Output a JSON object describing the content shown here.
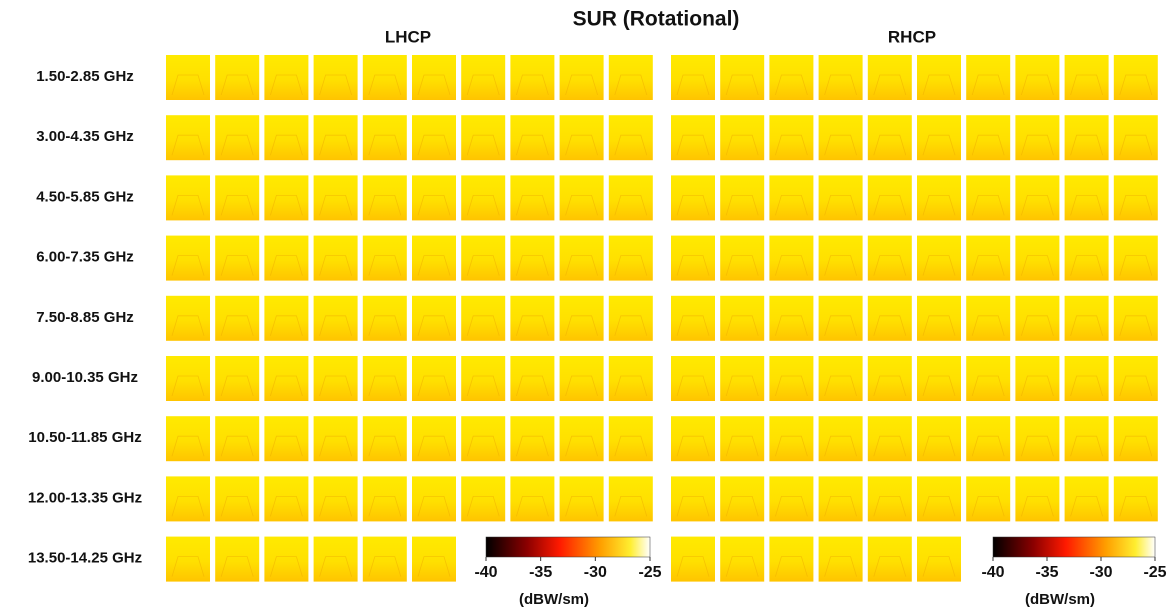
{
  "title": "SUR (Rotational)",
  "panels": [
    {
      "label": "LHCP"
    },
    {
      "label": "RHCP"
    }
  ],
  "rows": [
    "1.50-2.85 GHz",
    "3.00-4.35 GHz",
    "4.50-5.85 GHz",
    "6.00-7.35 GHz",
    "7.50-8.85 GHz",
    "9.00-10.35 GHz",
    "10.50-11.85 GHz",
    "12.00-13.35 GHz",
    "13.50-14.25 GHz"
  ],
  "colorbar": {
    "lim": [
      -40,
      -25
    ],
    "ticks": [
      -40,
      -35,
      -30,
      -25
    ],
    "label": "(dBW/sm)"
  }
}
